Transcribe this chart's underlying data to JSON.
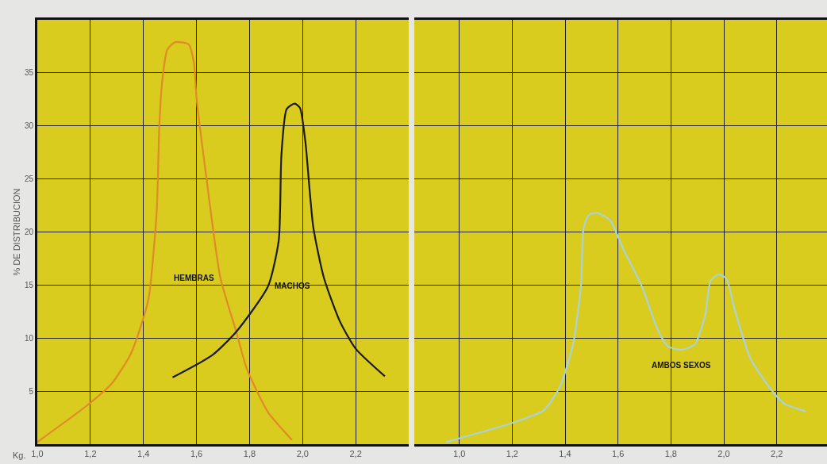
{
  "chart_data": [
    {
      "type": "line",
      "ylabel": "% DE DISTRIBUCION",
      "xlabel": "Kg.",
      "xlim": [
        1.0,
        2.4
      ],
      "ylim": [
        0,
        40
      ],
      "xticks": [
        {
          "value": 1.0,
          "label": "1,0"
        },
        {
          "value": 1.2,
          "label": "1,2"
        },
        {
          "value": 1.4,
          "label": "1,4"
        },
        {
          "value": 1.6,
          "label": "1,6"
        },
        {
          "value": 1.8,
          "label": "1,8"
        },
        {
          "value": 2.0,
          "label": "2,0"
        },
        {
          "value": 2.2,
          "label": "2,2"
        }
      ],
      "yticks": [
        5,
        10,
        15,
        20,
        25,
        30,
        35
      ],
      "grid": true,
      "legend": false,
      "marker": "none",
      "line_style": "solid",
      "series": [
        {
          "name": "HEMBRAS",
          "color": "#e08a28",
          "x": [
            1.0,
            1.19,
            1.28,
            1.35,
            1.39,
            1.42,
            1.45,
            1.46,
            1.47,
            1.49,
            1.52,
            1.57,
            1.59,
            1.6,
            1.64,
            1.69,
            1.75,
            1.79,
            1.87,
            1.96
          ],
          "values": [
            0.2,
            3.7,
            5.7,
            8.4,
            11.1,
            13.8,
            21.9,
            30,
            34,
            37.2,
            37.9,
            37.7,
            36,
            32.7,
            24.6,
            15.7,
            10.6,
            7.1,
            3.0,
            0.4
          ]
        },
        {
          "name": "MACHOS",
          "color": "#1a1a1a",
          "x": [
            1.51,
            1.66,
            1.75,
            1.87,
            1.91,
            1.92,
            1.94,
            1.97,
            1.99,
            2.01,
            2.04,
            2.08,
            2.14,
            2.2,
            2.31
          ],
          "values": [
            6.3,
            8.4,
            10.6,
            14.9,
            19.2,
            27.2,
            31.6,
            32.1,
            31.7,
            28.6,
            20.5,
            15.7,
            11.6,
            9.0,
            6.4
          ]
        }
      ]
    },
    {
      "type": "line",
      "xlim": [
        0.83,
        2.39
      ],
      "ylim": [
        0,
        40
      ],
      "tick_labels": "x",
      "xticks": [
        {
          "value": 1.0,
          "label": "1,0"
        },
        {
          "value": 1.2,
          "label": "1,2"
        },
        {
          "value": 1.4,
          "label": "1,4"
        },
        {
          "value": 1.6,
          "label": "1,6"
        },
        {
          "value": 1.8,
          "label": "1,8"
        },
        {
          "value": 2.0,
          "label": "2,0"
        },
        {
          "value": 2.2,
          "label": "2,2"
        }
      ],
      "yticks": [
        5,
        10,
        15,
        20,
        25,
        30,
        35
      ],
      "grid": true,
      "legend": false,
      "marker": "none",
      "line_style": "solid",
      "series": [
        {
          "name": "AMBOS SEXOS",
          "color": "#a9d3dc",
          "x": [
            0.95,
            1.2,
            1.32,
            1.38,
            1.43,
            1.46,
            1.47,
            1.49,
            1.52,
            1.57,
            1.62,
            1.69,
            1.75,
            1.79,
            1.84,
            1.89,
            1.93,
            1.95,
            1.98,
            2.01,
            2.04,
            2.1,
            2.18,
            2.23,
            2.31
          ],
          "values": [
            0.2,
            2.0,
            3.2,
            5.4,
            9.4,
            14.9,
            20.4,
            21.6,
            21.8,
            21.1,
            18.4,
            14.9,
            10.8,
            9.2,
            8.9,
            9.4,
            12.2,
            15.4,
            16.0,
            15.6,
            12.8,
            8.1,
            5.1,
            3.8,
            3.1
          ]
        }
      ]
    }
  ]
}
